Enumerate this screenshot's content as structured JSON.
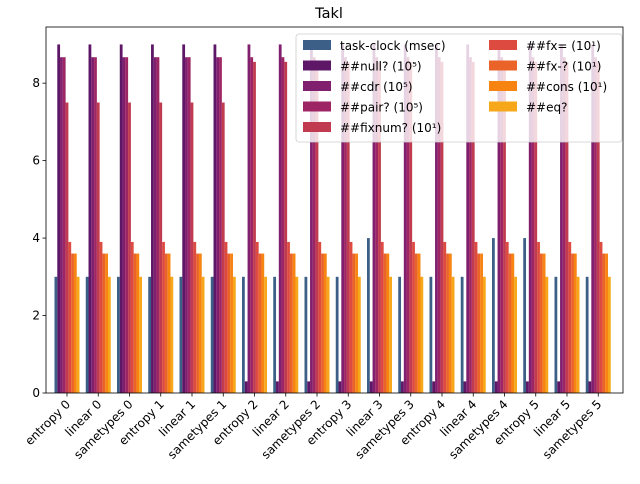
{
  "chart_data": {
    "type": "bar",
    "title": "Takl",
    "xlabel": "",
    "ylabel": "",
    "ylim": [
      0,
      9.45
    ],
    "yticks": [
      0,
      2,
      4,
      6,
      8
    ],
    "grid": false,
    "legend_position": "top-right",
    "categories": [
      "entropy 0",
      "linear 0",
      "sametypes 0",
      "entropy 1",
      "linear 1",
      "sametypes 1",
      "entropy 2",
      "linear 2",
      "sametypes 2",
      "entropy 3",
      "linear 3",
      "sametypes 3",
      "entropy 4",
      "linear 4",
      "sametypes 4",
      "entropy 5",
      "linear 5",
      "sametypes 5"
    ],
    "series": [
      {
        "name": "task-clock (msec)",
        "color": "#3b5f86",
        "values": [
          3,
          3,
          3,
          3,
          3,
          3,
          3,
          3,
          3,
          3,
          4,
          3,
          3,
          3,
          4,
          4,
          3,
          3
        ]
      },
      {
        "name": "##null? (10⁵)",
        "color": "#5e1766",
        "values": [
          9.0,
          9.0,
          9.0,
          9.0,
          9.0,
          9.0,
          0.3,
          0.3,
          0.3,
          0.3,
          0.3,
          0.3,
          0.3,
          0.3,
          0.3,
          0.3,
          0.3,
          0.3
        ]
      },
      {
        "name": "##cdr (10⁵)",
        "color": "#7f1f6e",
        "values": [
          8.67,
          8.67,
          8.67,
          8.67,
          8.67,
          8.67,
          9.0,
          9.0,
          9.0,
          9.0,
          9.0,
          9.0,
          9.0,
          9.0,
          9.0,
          9.0,
          9.0,
          9.0
        ]
      },
      {
        "name": "##pair? (10⁵)",
        "color": "#9e2564",
        "values": [
          8.67,
          8.67,
          8.67,
          8.67,
          8.67,
          8.67,
          8.67,
          8.67,
          8.67,
          8.67,
          8.67,
          8.67,
          8.67,
          8.67,
          8.67,
          8.67,
          8.67,
          8.67
        ]
      },
      {
        "name": "##fixnum? (10¹)",
        "color": "#c03a50",
        "values": [
          7.5,
          7.5,
          7.5,
          7.5,
          7.5,
          7.5,
          8.55,
          8.55,
          8.55,
          8.55,
          8.55,
          8.55,
          8.55,
          8.55,
          8.55,
          8.55,
          8.55,
          8.55
        ]
      },
      {
        "name": "##fx= (10¹)",
        "color": "#dc4a40",
        "values": [
          3.9,
          3.9,
          3.9,
          3.9,
          3.9,
          3.9,
          3.9,
          3.9,
          3.9,
          3.9,
          3.9,
          3.9,
          3.9,
          3.9,
          3.9,
          3.9,
          3.9,
          3.9
        ]
      },
      {
        "name": "##fx-? (10¹)",
        "color": "#ea6328",
        "values": [
          3.6,
          3.6,
          3.6,
          3.6,
          3.6,
          3.6,
          3.6,
          3.6,
          3.6,
          3.6,
          3.6,
          3.6,
          3.6,
          3.6,
          3.6,
          3.6,
          3.6,
          3.6
        ]
      },
      {
        "name": "##cons (10¹)",
        "color": "#f78310",
        "values": [
          3.6,
          3.6,
          3.6,
          3.6,
          3.6,
          3.6,
          3.6,
          3.6,
          3.6,
          3.6,
          3.6,
          3.6,
          3.6,
          3.6,
          3.6,
          3.6,
          3.6,
          3.6
        ]
      },
      {
        "name": "##eq?",
        "color": "#f6a81a",
        "values": [
          3,
          3,
          3,
          3,
          3,
          3,
          3,
          3,
          3,
          3,
          3,
          3,
          3,
          3,
          3,
          3,
          3,
          3
        ]
      }
    ]
  }
}
